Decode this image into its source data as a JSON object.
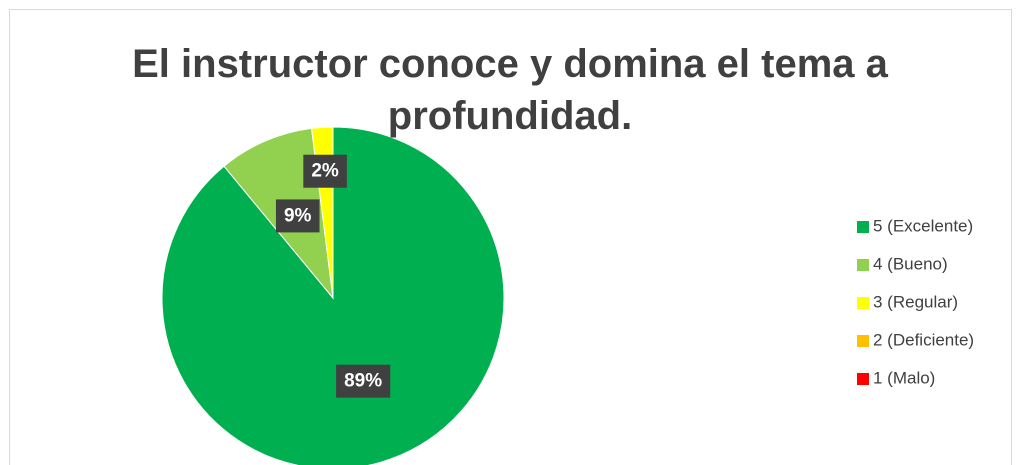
{
  "chart_data": {
    "type": "pie",
    "title": "El instructor conoce y domina el tema a profundidad.",
    "categories": [
      "5 (Excelente)",
      "4 (Bueno)",
      "3 (Regular)",
      "2 (Deficiente)",
      "1 (Malo)"
    ],
    "values": [
      89,
      9,
      2,
      0,
      0
    ],
    "value_labels": [
      "89%",
      "9%",
      "2%",
      null,
      null
    ],
    "colors": [
      "#00b050",
      "#92d050",
      "#ffff00",
      "#ffc000",
      "#ff0000"
    ],
    "legend": "right"
  }
}
